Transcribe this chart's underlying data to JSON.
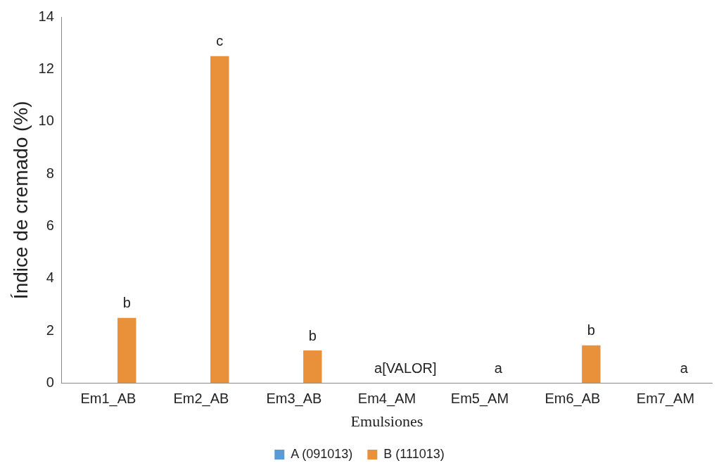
{
  "chart_data": {
    "type": "bar",
    "xlabel": "Emulsiones",
    "ylabel": "Índice de cremado (%)",
    "categories": [
      "Em1_AB",
      "Em2_AB",
      "Em3_AB",
      "Em4_AM",
      "Em5_AM",
      "Em6_AB",
      "Em7_AM"
    ],
    "series": [
      {
        "name": "A (091013)",
        "color": "#5b9bd5",
        "values": [
          0,
          0,
          0,
          0,
          0,
          0,
          0
        ]
      },
      {
        "name": "B (111013)",
        "color": "#e8913a",
        "values": [
          2.5,
          12.5,
          1.25,
          0,
          0,
          1.45,
          0
        ],
        "value_labels": [
          "b",
          "c",
          "b",
          null,
          null,
          "b",
          null
        ]
      }
    ],
    "ylim": [
      0,
      14
    ],
    "yticks": [
      0,
      2,
      4,
      6,
      8,
      10,
      12,
      14
    ],
    "grid": false,
    "legend": "bottom",
    "annotations": [
      "a[VALOR]",
      "a",
      "a"
    ]
  }
}
